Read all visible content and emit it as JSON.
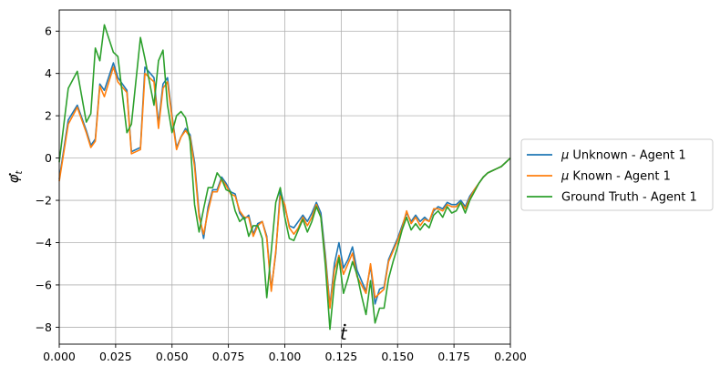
{
  "chart_data": {
    "type": "line",
    "title": "",
    "xlabel": "t",
    "xlabel_accent": "dot",
    "ylabel": "φ_t",
    "ylabel_accent": "dot",
    "xlim": [
      0.0,
      0.2
    ],
    "ylim": [
      -8.8,
      7.0
    ],
    "xticks": [
      0.0,
      0.025,
      0.05,
      0.075,
      0.1,
      0.125,
      0.15,
      0.175,
      0.2
    ],
    "xtick_labels": [
      "0.000",
      "0.025",
      "0.050",
      "0.075",
      "0.100",
      "0.125",
      "0.150",
      "0.175",
      "0.200"
    ],
    "yticks": [
      -8,
      -6,
      -4,
      -2,
      0,
      2,
      4,
      6
    ],
    "ytick_labels": [
      "−8",
      "−6",
      "−4",
      "−2",
      "0",
      "2",
      "4",
      "6"
    ],
    "grid": true,
    "legend_placement": "right outside",
    "x": [
      0.0,
      0.004,
      0.008,
      0.012,
      0.014,
      0.016,
      0.018,
      0.02,
      0.024,
      0.026,
      0.03,
      0.032,
      0.036,
      0.038,
      0.042,
      0.044,
      0.046,
      0.048,
      0.05,
      0.052,
      0.054,
      0.056,
      0.058,
      0.06,
      0.062,
      0.064,
      0.066,
      0.068,
      0.07,
      0.072,
      0.074,
      0.076,
      0.078,
      0.08,
      0.082,
      0.084,
      0.086,
      0.088,
      0.09,
      0.092,
      0.094,
      0.096,
      0.098,
      0.1,
      0.102,
      0.104,
      0.106,
      0.108,
      0.11,
      0.112,
      0.114,
      0.116,
      0.118,
      0.12,
      0.122,
      0.124,
      0.126,
      0.128,
      0.13,
      0.132,
      0.134,
      0.136,
      0.138,
      0.14,
      0.142,
      0.144,
      0.146,
      0.148,
      0.15,
      0.152,
      0.154,
      0.156,
      0.158,
      0.16,
      0.162,
      0.164,
      0.166,
      0.168,
      0.17,
      0.172,
      0.174,
      0.176,
      0.178,
      0.18,
      0.182,
      0.184,
      0.186,
      0.188,
      0.19,
      0.192,
      0.194,
      0.196,
      0.198,
      0.2
    ],
    "series": [
      {
        "name": "μ Unknown - Agent 1",
        "color": "#1f77b4",
        "values": [
          -1.0,
          1.8,
          2.5,
          1.3,
          0.6,
          0.9,
          3.5,
          3.2,
          4.5,
          3.8,
          3.2,
          0.3,
          0.5,
          4.3,
          3.8,
          1.6,
          3.5,
          3.8,
          2.0,
          0.5,
          1.0,
          1.4,
          1.1,
          -0.2,
          -2.6,
          -3.8,
          -2.3,
          -1.5,
          -1.5,
          -0.9,
          -1.2,
          -1.6,
          -1.7,
          -2.6,
          -2.9,
          -2.7,
          -3.6,
          -3.1,
          -3.0,
          -3.7,
          -6.2,
          -4.5,
          -1.5,
          -2.3,
          -3.2,
          -3.3,
          -3.0,
          -2.7,
          -3.0,
          -2.6,
          -2.1,
          -2.6,
          -4.6,
          -7.0,
          -5.0,
          -4.0,
          -5.2,
          -4.8,
          -4.2,
          -5.3,
          -5.8,
          -6.3,
          -5.1,
          -6.9,
          -6.2,
          -6.1,
          -4.8,
          -4.3,
          -3.8,
          -3.2,
          -2.6,
          -3.0,
          -2.7,
          -3.0,
          -2.8,
          -3.0,
          -2.5,
          -2.3,
          -2.4,
          -2.1,
          -2.2,
          -2.2,
          -2.0,
          -2.3,
          -1.8,
          -1.5,
          -1.2,
          -0.9,
          -0.7,
          -0.6,
          -0.5,
          -0.4,
          -0.2,
          0.0
        ]
      },
      {
        "name": "μ Known - Agent 1",
        "color": "#ff7f0e",
        "values": [
          -1.1,
          1.6,
          2.4,
          1.2,
          0.5,
          0.8,
          3.4,
          2.9,
          4.3,
          3.6,
          3.1,
          0.2,
          0.4,
          4.0,
          3.6,
          1.4,
          3.3,
          3.6,
          1.9,
          0.4,
          1.0,
          1.3,
          1.0,
          -0.4,
          -2.8,
          -3.6,
          -2.5,
          -1.6,
          -1.6,
          -1.0,
          -1.3,
          -1.7,
          -1.8,
          -2.5,
          -2.8,
          -2.8,
          -3.7,
          -3.2,
          -3.0,
          -3.8,
          -6.3,
          -4.4,
          -1.8,
          -2.2,
          -3.3,
          -3.6,
          -3.3,
          -2.8,
          -3.2,
          -2.8,
          -2.2,
          -2.8,
          -4.8,
          -7.1,
          -5.3,
          -4.6,
          -5.5,
          -5.0,
          -4.5,
          -5.6,
          -6.0,
          -6.4,
          -5.0,
          -6.6,
          -6.4,
          -6.2,
          -4.9,
          -4.4,
          -3.9,
          -3.3,
          -2.5,
          -3.1,
          -2.8,
          -3.2,
          -2.9,
          -3.0,
          -2.4,
          -2.4,
          -2.5,
          -2.2,
          -2.3,
          -2.3,
          -2.1,
          -2.4,
          -1.9,
          -1.5,
          -1.2,
          -0.9,
          -0.7,
          -0.6,
          -0.5,
          -0.4,
          -0.2,
          0.0
        ]
      },
      {
        "name": "Ground Truth - Agent 1",
        "color": "#2ca02c",
        "values": [
          -0.2,
          3.3,
          4.1,
          1.7,
          2.1,
          5.2,
          4.6,
          6.3,
          5.0,
          4.8,
          1.2,
          1.6,
          5.7,
          4.7,
          2.5,
          4.6,
          5.1,
          2.5,
          1.2,
          2.0,
          2.2,
          1.9,
          0.8,
          -2.2,
          -3.5,
          -2.4,
          -1.4,
          -1.4,
          -0.7,
          -1.0,
          -1.5,
          -1.6,
          -2.5,
          -3.0,
          -2.8,
          -3.7,
          -3.2,
          -3.2,
          -3.8,
          -6.6,
          -4.4,
          -2.1,
          -1.4,
          -2.8,
          -3.8,
          -3.9,
          -3.4,
          -2.9,
          -3.5,
          -3.0,
          -2.3,
          -2.8,
          -5.1,
          -8.1,
          -5.9,
          -4.7,
          -6.4,
          -5.7,
          -4.9,
          -5.5,
          -6.5,
          -7.4,
          -5.8,
          -7.8,
          -7.1,
          -7.1,
          -5.7,
          -4.9,
          -4.2,
          -3.4,
          -2.8,
          -3.4,
          -3.1,
          -3.4,
          -3.1,
          -3.3,
          -2.7,
          -2.5,
          -2.8,
          -2.3,
          -2.6,
          -2.5,
          -2.1,
          -2.6,
          -2.0,
          -1.6,
          -1.2,
          -0.9,
          -0.7,
          -0.6,
          -0.5,
          -0.4,
          -0.2,
          0.0
        ]
      }
    ]
  }
}
